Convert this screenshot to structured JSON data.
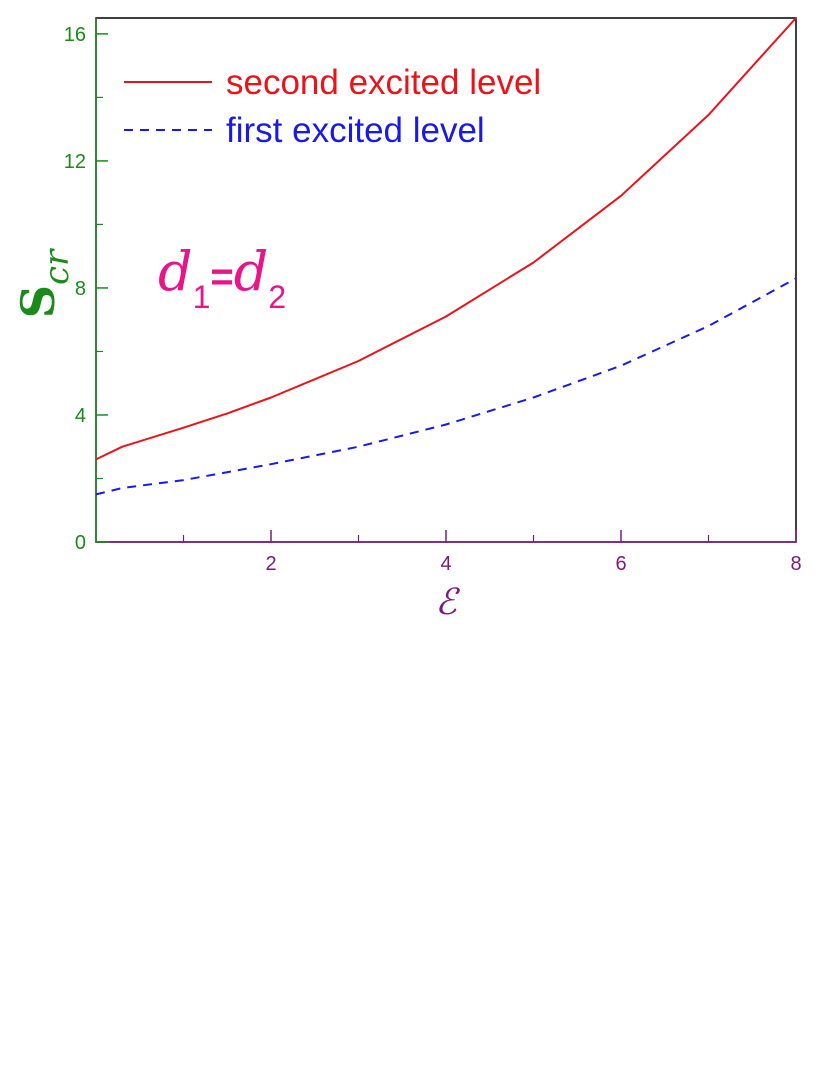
{
  "chart_data": {
    "type": "line",
    "xlabel": "ℰ",
    "ylabel": {
      "main": "S",
      "sub": "cr"
    },
    "xlim": [
      0,
      8
    ],
    "ylim": [
      0,
      16.5
    ],
    "x_ticks": [
      2,
      4,
      6,
      8
    ],
    "x_minor_ticks": [
      1,
      3,
      5,
      7
    ],
    "y_ticks": [
      0,
      4,
      8,
      12,
      16
    ],
    "y_minor_ticks": [
      2,
      6,
      10,
      14
    ],
    "grid": false,
    "legend_position": "top-left",
    "series": [
      {
        "name": "second excited level",
        "style": "solid",
        "color": "#e8141a",
        "x": [
          0,
          0.3,
          1,
          1.5,
          2,
          3,
          4,
          5,
          6,
          7,
          8
        ],
        "y": [
          2.6,
          3.0,
          3.6,
          4.05,
          4.55,
          5.7,
          7.1,
          8.8,
          10.9,
          13.45,
          16.5
        ]
      },
      {
        "name": "first excited level",
        "style": "dashed",
        "color": "#1a1ae8",
        "x": [
          0,
          0.3,
          1,
          2,
          3,
          4,
          5,
          6,
          7,
          8
        ],
        "y": [
          1.5,
          1.7,
          1.95,
          2.45,
          3.0,
          3.7,
          4.55,
          5.55,
          6.8,
          8.3
        ]
      }
    ],
    "annotation": {
      "d": "d",
      "sub1": "1",
      "eq": "=",
      "sub2": "2"
    },
    "colors": {
      "y_axis": "#1a8a1a",
      "x_axis": "#7a1a7a",
      "annotation": "#e8148a",
      "frame": "#000000"
    }
  }
}
